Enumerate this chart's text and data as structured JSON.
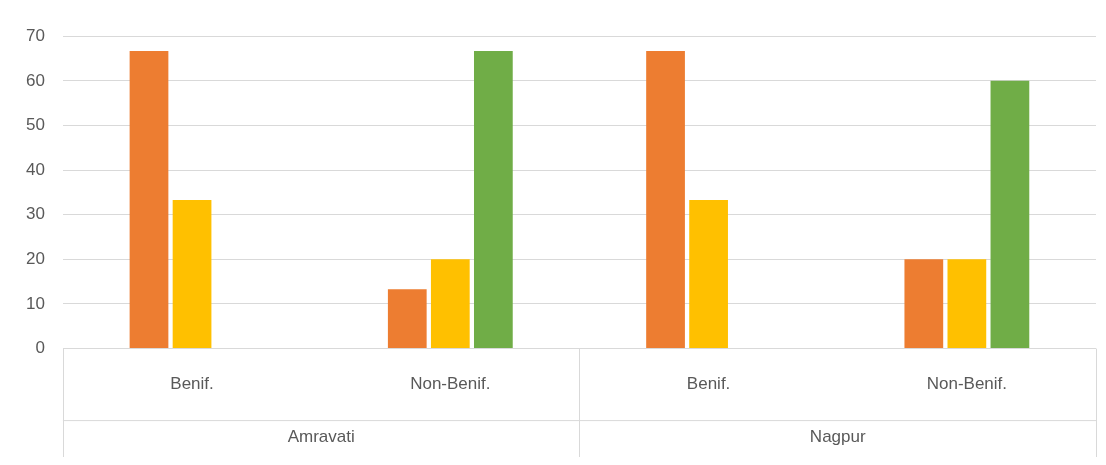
{
  "chart_data": {
    "type": "bar",
    "categories": [
      "Benif.",
      "Non-Benif.",
      "Benif.",
      "Non-Benif."
    ],
    "series": [
      {
        "color": "#ed7d31",
        "values": [
          66.7,
          13.3,
          66.7,
          20
        ]
      },
      {
        "color": "#ffc000",
        "values": [
          33.3,
          20,
          33.3,
          20
        ]
      },
      {
        "color": "#70ad47",
        "values": [
          0,
          66.7,
          0,
          60
        ]
      }
    ],
    "ylim": [
      0,
      70
    ],
    "yticks": [
      0,
      10,
      20,
      30,
      40,
      50,
      60,
      70
    ],
    "grid": "y",
    "legend": false,
    "annotations": [
      "Amravati",
      "Nagpur"
    ]
  }
}
